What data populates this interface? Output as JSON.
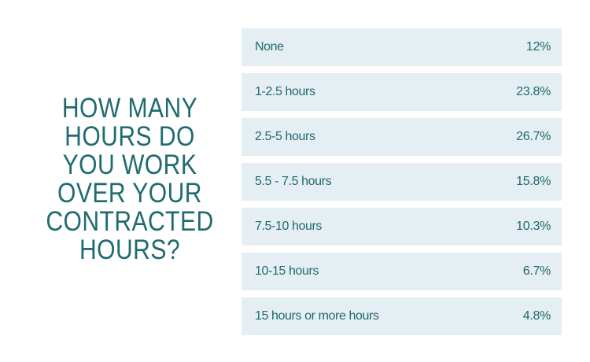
{
  "chart_data": {
    "type": "table",
    "title": "HOW MANY HOURS DO YOU WORK OVER YOUR CONTRACTED HOURS?",
    "categories": [
      "None",
      "1-2.5 hours",
      "2.5-5 hours",
      "5.5 - 7.5 hours",
      "7.5-10 hours",
      "10-15 hours",
      "15 hours or more hours"
    ],
    "values": [
      "12%",
      "23.8%",
      "26.7%",
      "15.8%",
      "10.3%",
      "6.7%",
      "4.8%"
    ]
  },
  "colors": {
    "text": "#1f6b6f",
    "row_background": "#e5eef2"
  }
}
